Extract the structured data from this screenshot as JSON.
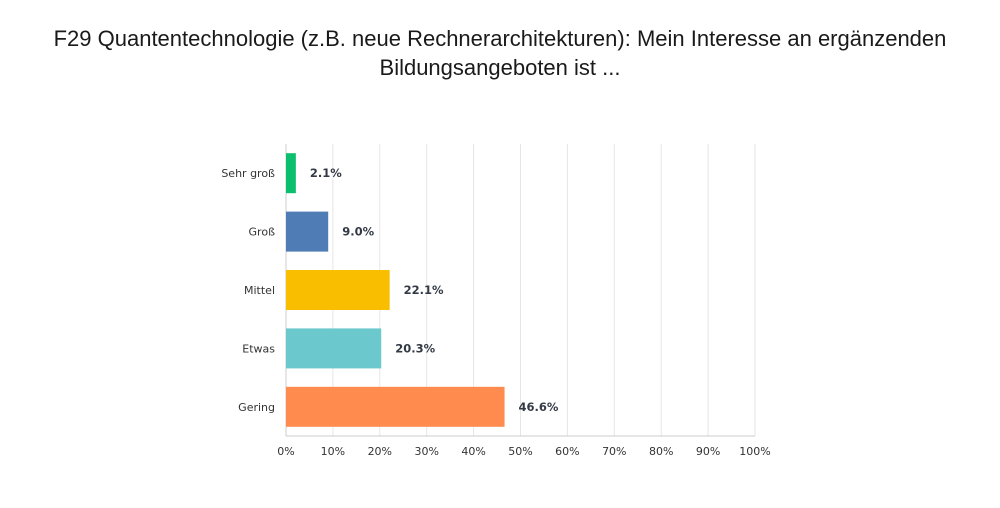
{
  "chart_data": {
    "type": "bar",
    "orientation": "horizontal",
    "title": "F29 Quantentechnologie (z.B. neue Rechnerarchitekturen): Mein Interesse an ergänzenden Bildungsangeboten ist ...",
    "xlabel": "",
    "ylabel": "",
    "categories": [
      "Sehr groß",
      "Groß",
      "Mittel",
      "Etwas",
      "Gering"
    ],
    "values": [
      2.1,
      9.0,
      22.1,
      20.3,
      46.6
    ],
    "value_labels": [
      "2.1%",
      "9.0%",
      "22.1%",
      "20.3%",
      "46.6%"
    ],
    "colors": [
      "#0bbf6e",
      "#507cb6",
      "#f9be00",
      "#6bc8cd",
      "#ff8b4f"
    ],
    "xlim": [
      0,
      100
    ],
    "x_ticks": [
      "0%",
      "10%",
      "20%",
      "30%",
      "40%",
      "50%",
      "60%",
      "70%",
      "80%",
      "90%",
      "100%"
    ],
    "grid": true,
    "legend": "none"
  }
}
